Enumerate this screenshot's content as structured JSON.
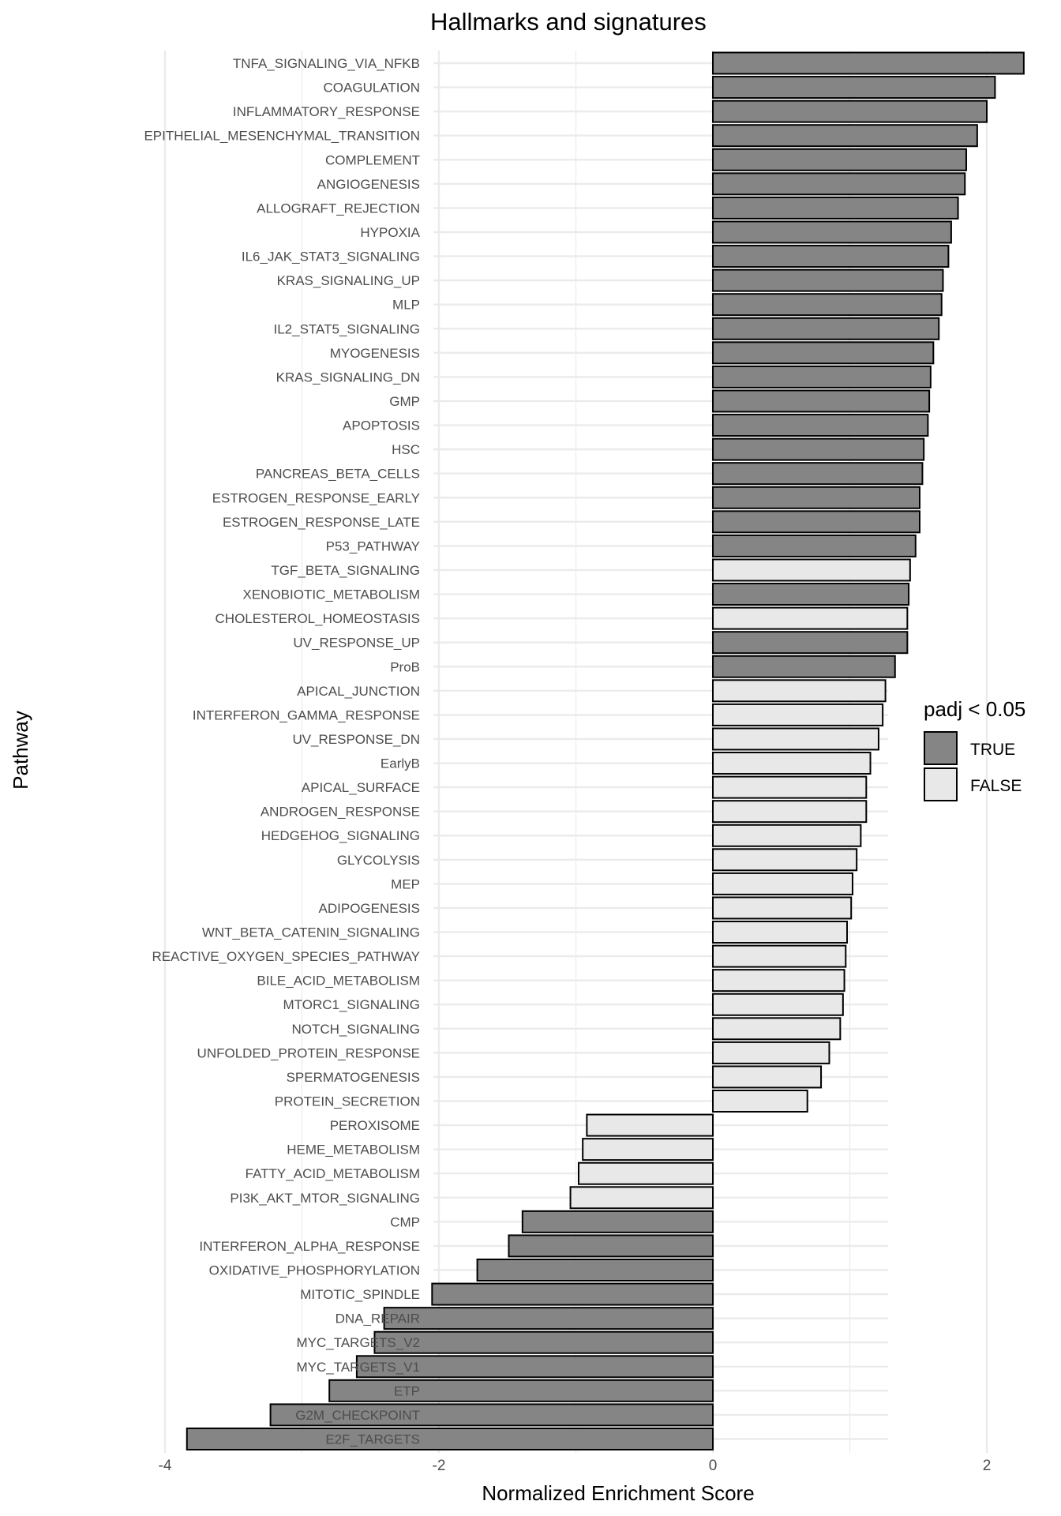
{
  "chart_data": {
    "type": "bar",
    "orientation": "horizontal",
    "title": "Hallmarks and signatures",
    "xlabel": "Normalized Enrichment Score",
    "ylabel": "Pathway",
    "xlim": [
      -4.05,
      2.55
    ],
    "xticks": [
      -4,
      -2,
      0,
      2
    ],
    "xtick_labels": [
      "-4",
      "-2",
      "0",
      "2"
    ],
    "grid": true,
    "legend": {
      "title": "padj < 0.05",
      "position": "right",
      "entries": [
        {
          "label": "TRUE",
          "color": "#858585"
        },
        {
          "label": "FALSE",
          "color": "#e8e8e8"
        }
      ]
    },
    "categories": [
      "TNFA_SIGNALING_VIA_NFKB",
      "COAGULATION",
      "INFLAMMATORY_RESPONSE",
      "EPITHELIAL_MESENCHYMAL_TRANSITION",
      "COMPLEMENT",
      "ANGIOGENESIS",
      "ALLOGRAFT_REJECTION",
      "HYPOXIA",
      "IL6_JAK_STAT3_SIGNALING",
      "KRAS_SIGNALING_UP",
      "MLP",
      "IL2_STAT5_SIGNALING",
      "MYOGENESIS",
      "KRAS_SIGNALING_DN",
      "GMP",
      "APOPTOSIS",
      "HSC",
      "PANCREAS_BETA_CELLS",
      "ESTROGEN_RESPONSE_EARLY",
      "ESTROGEN_RESPONSE_LATE",
      "P53_PATHWAY",
      "TGF_BETA_SIGNALING",
      "XENOBIOTIC_METABOLISM",
      "CHOLESTEROL_HOMEOSTASIS",
      "UV_RESPONSE_UP",
      "ProB",
      "APICAL_JUNCTION",
      "INTERFERON_GAMMA_RESPONSE",
      "UV_RESPONSE_DN",
      "EarlyB",
      "APICAL_SURFACE",
      "ANDROGEN_RESPONSE",
      "HEDGEHOG_SIGNALING",
      "GLYCOLYSIS",
      "MEP",
      "ADIPOGENESIS",
      "WNT_BETA_CATENIN_SIGNALING",
      "REACTIVE_OXYGEN_SPECIES_PATHWAY",
      "BILE_ACID_METABOLISM",
      "MTORC1_SIGNALING",
      "NOTCH_SIGNALING",
      "UNFOLDED_PROTEIN_RESPONSE",
      "SPERMATOGENESIS",
      "PROTEIN_SECRETION",
      "PEROXISOME",
      "HEME_METABOLISM",
      "FATTY_ACID_METABOLISM",
      "PI3K_AKT_MTOR_SIGNALING",
      "CMP",
      "INTERFERON_ALPHA_RESPONSE",
      "OXIDATIVE_PHOSPHORYLATION",
      "MITOTIC_SPINDLE",
      "DNA_REPAIR",
      "MYC_TARGETS_V2",
      "MYC_TARGETS_V1",
      "ETP",
      "G2M_CHECKPOINT",
      "E2F_TARGETS"
    ],
    "values": [
      2.27,
      2.06,
      2.0,
      1.93,
      1.85,
      1.84,
      1.79,
      1.74,
      1.72,
      1.68,
      1.67,
      1.65,
      1.61,
      1.59,
      1.58,
      1.57,
      1.54,
      1.53,
      1.51,
      1.51,
      1.48,
      1.44,
      1.43,
      1.42,
      1.42,
      1.33,
      1.26,
      1.24,
      1.21,
      1.15,
      1.12,
      1.12,
      1.08,
      1.05,
      1.02,
      1.01,
      0.98,
      0.97,
      0.96,
      0.95,
      0.93,
      0.85,
      0.79,
      0.69,
      -0.92,
      -0.95,
      -0.98,
      -1.04,
      -1.39,
      -1.49,
      -1.72,
      -2.05,
      -2.4,
      -2.47,
      -2.6,
      -2.8,
      -3.23,
      -3.84
    ],
    "significant": [
      true,
      true,
      true,
      true,
      true,
      true,
      true,
      true,
      true,
      true,
      true,
      true,
      true,
      true,
      true,
      true,
      true,
      true,
      true,
      true,
      true,
      false,
      true,
      false,
      true,
      true,
      false,
      false,
      false,
      false,
      false,
      false,
      false,
      false,
      false,
      false,
      false,
      false,
      false,
      false,
      false,
      false,
      false,
      false,
      false,
      false,
      false,
      false,
      true,
      true,
      true,
      true,
      true,
      true,
      true,
      true,
      true,
      true
    ],
    "colors": {
      "true_fill": "#858585",
      "false_fill": "#e8e8e8",
      "bar_border": "#000000",
      "grid": "#ebebeb",
      "text_muted": "#4d4d4d"
    }
  }
}
